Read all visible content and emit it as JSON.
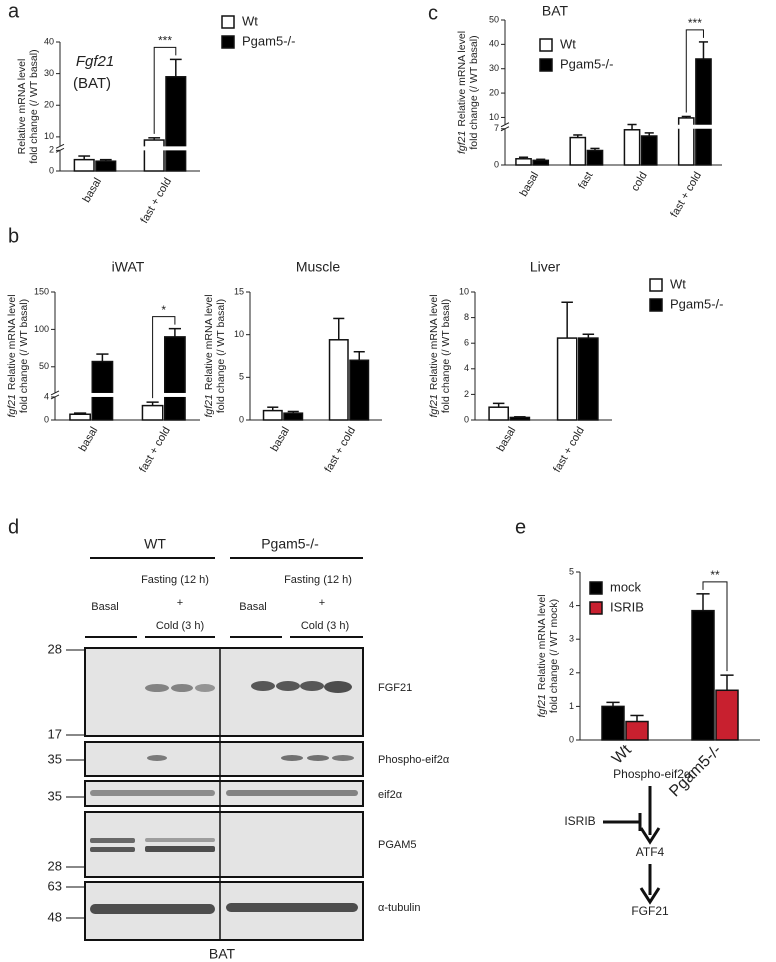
{
  "panel_labels": [
    "a",
    "b",
    "c",
    "d",
    "e"
  ],
  "chart_data": [
    {
      "type": "bar",
      "title": "Fgf21",
      "subtitle": "(BAT)",
      "ylabel": [
        "Relative mRNA level",
        "fold change (/ WT basal)"
      ],
      "categories": [
        "basal",
        "fast + cold"
      ],
      "series": [
        {
          "name": "Wt",
          "color": "#ffffff",
          "values": [
            1.1,
            9.0
          ],
          "errors": [
            0.35,
            0.7
          ]
        },
        {
          "name": "Pgam5-/-",
          "color": "#000000",
          "values": [
            0.95,
            29
          ],
          "errors": [
            0.15,
            5.5
          ]
        }
      ],
      "ylim": [
        0,
        40
      ],
      "ybreak": [
        2,
        7
      ],
      "yticks": [
        0,
        2,
        10,
        20,
        30,
        40
      ],
      "annotation": "***"
    },
    {
      "type": "bar",
      "title": "BAT",
      "ylabel_italic": "fgf21",
      "ylabel": [
        "Relative mRNA level",
        "fold change (/ WT basal)"
      ],
      "categories": [
        "basal",
        "fast",
        "cold",
        "fast + cold"
      ],
      "series": [
        {
          "name": "Wt",
          "color": "#ffffff",
          "values": [
            1.2,
            5.3,
            6.8,
            9.8
          ],
          "errors": [
            0.3,
            0.5,
            0.3,
            0.6
          ]
        },
        {
          "name": "Pgam5-/-",
          "color": "#000000",
          "values": [
            0.9,
            2.8,
            5.6,
            34
          ],
          "errors": [
            0.2,
            0.4,
            0.6,
            7
          ]
        }
      ],
      "ylim": [
        0,
        50
      ],
      "ybreak": [
        7,
        7
      ],
      "yticks": [
        0,
        7,
        10,
        20,
        30,
        40,
        50
      ],
      "annotation": "***"
    },
    {
      "type": "bar",
      "title": "iWAT",
      "ylabel_italic": "fgf21",
      "ylabel": [
        "Relative mRNA level",
        "fold change (/ WT basal)"
      ],
      "categories": [
        "basal",
        "fast + cold"
      ],
      "series": [
        {
          "color": "#ffffff",
          "values": [
            1.0,
            2.5
          ],
          "errors": [
            0.2,
            0.6
          ]
        },
        {
          "color": "#000000",
          "values": [
            57,
            90
          ],
          "errors": [
            10,
            11
          ]
        }
      ],
      "ylim": [
        0,
        150
      ],
      "ybreak": [
        4,
        15
      ],
      "yticks": [
        0,
        4,
        50,
        100,
        150
      ],
      "annotation": "*"
    },
    {
      "type": "bar",
      "title": "Muscle",
      "ylabel_italic": "fgf21",
      "ylabel": [
        "Relative mRNA level",
        "fold change (/ WT basal)"
      ],
      "categories": [
        "basal",
        "fast + cold"
      ],
      "series": [
        {
          "color": "#ffffff",
          "values": [
            1.1,
            9.4
          ],
          "errors": [
            0.4,
            2.5
          ]
        },
        {
          "color": "#000000",
          "values": [
            0.8,
            7.0
          ],
          "errors": [
            0.2,
            1.0
          ]
        }
      ],
      "ylim": [
        0,
        15
      ],
      "yticks": [
        0,
        5,
        10,
        15
      ]
    },
    {
      "type": "bar",
      "title": "Liver",
      "ylabel_italic": "fgf21",
      "ylabel": [
        "Relative mRNA level",
        "fold change (/ WT basal)"
      ],
      "categories": [
        "basal",
        "fast + cold"
      ],
      "series": [
        {
          "name": "Wt",
          "color": "#ffffff",
          "values": [
            1.0,
            6.4
          ],
          "errors": [
            0.3,
            2.8
          ]
        },
        {
          "name": "Pgam5-/-",
          "color": "#000000",
          "values": [
            0.2,
            6.4
          ],
          "errors": [
            0.05,
            0.3
          ]
        }
      ],
      "ylim": [
        0,
        10
      ],
      "yticks": [
        0,
        2,
        4,
        6,
        8,
        10
      ]
    },
    {
      "type": "bar",
      "ylabel_italic": "fgf21",
      "ylabel": [
        "Relative mRNA level",
        "fold change (/ WT mock)"
      ],
      "categories": [
        "Wt",
        "Pgam5-/-"
      ],
      "series": [
        {
          "name": "mock",
          "color": "#000000",
          "values": [
            1.0,
            3.85
          ],
          "errors": [
            0.12,
            0.5
          ]
        },
        {
          "name": "ISRIB",
          "color": "#c8202f",
          "values": [
            0.55,
            1.48
          ],
          "errors": [
            0.18,
            0.45
          ]
        }
      ],
      "ylim": [
        0,
        5
      ],
      "yticks": [
        0,
        1,
        2,
        3,
        4,
        5
      ],
      "annotation": "**"
    }
  ],
  "blot": {
    "groups": [
      {
        "name": "WT",
        "basal": "Basal",
        "fasting": "Fasting (12 h)",
        "plus": "+",
        "cold": "Cold (3 h)"
      },
      {
        "name": "Pgam5-/-",
        "basal": "Basal",
        "fasting": "Fasting (12 h)",
        "plus": "+",
        "cold": "Cold (3 h)"
      }
    ],
    "bands": [
      {
        "label": "FGF21",
        "markers": [
          "28",
          "17"
        ]
      },
      {
        "label": "Phospho-eif2α",
        "markers": [
          "35"
        ]
      },
      {
        "label": "eif2α",
        "markers": [
          "35"
        ]
      },
      {
        "label": "PGAM5",
        "markers": [
          "28"
        ]
      },
      {
        "label": "α-tubulin",
        "markers": [
          "63",
          "48"
        ]
      }
    ],
    "tissue": "BAT"
  },
  "pathway": {
    "nodes": [
      "Phospho-eif2α",
      "ATF4",
      "FGF21"
    ],
    "inhibitor": "ISRIB"
  }
}
